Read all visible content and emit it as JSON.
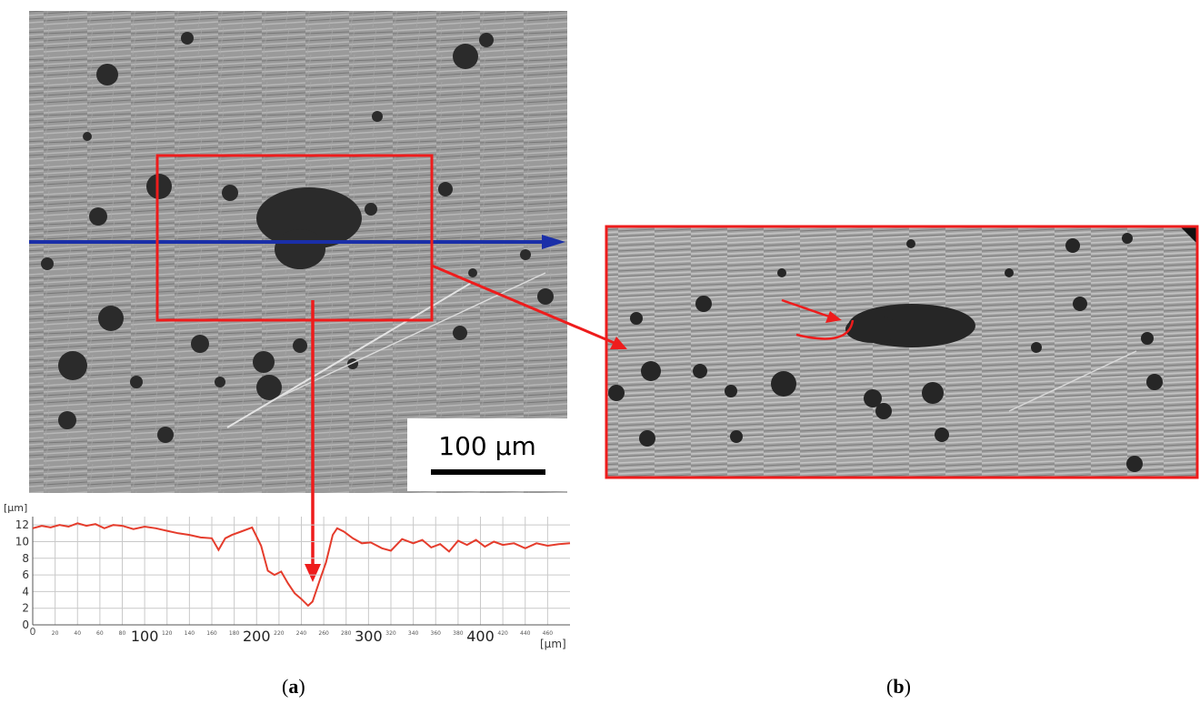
{
  "scale_bar": {
    "label": "100 µm"
  },
  "profile_chart": {
    "y_unit_label": "[µm]",
    "x_unit_label": "[µm]"
  },
  "captions": {
    "a": "a",
    "b": "b"
  },
  "colors": {
    "profile_line": "#e53c2c",
    "scan_line": "#1a2fa8",
    "annotation": "#ee1c1c",
    "grid": "#c9c9c9"
  },
  "chart_data": {
    "type": "line",
    "title": "",
    "xlabel": "[µm]",
    "ylabel": "[µm]",
    "xlim": [
      0,
      480
    ],
    "ylim": [
      0,
      13
    ],
    "grid": true,
    "x_major_ticks": [
      100,
      200,
      300,
      400
    ],
    "x_minor_ticks": [
      0,
      20,
      40,
      60,
      80,
      120,
      140,
      160,
      180,
      220,
      240,
      260,
      280,
      320,
      340,
      360,
      380,
      420,
      440,
      460
    ],
    "y_ticks": [
      0,
      2,
      4,
      6,
      8,
      10,
      12
    ],
    "series": [
      {
        "x": [
          0,
          8,
          16,
          24,
          32,
          40,
          48,
          56,
          64,
          72,
          80,
          90,
          100,
          110,
          120,
          130,
          140,
          150,
          160,
          166,
          172,
          178,
          186,
          196,
          204,
          210,
          216,
          222,
          228,
          234,
          240,
          246,
          250,
          256,
          262,
          268,
          272,
          278,
          286,
          294,
          302,
          312,
          320,
          330,
          340,
          348,
          356,
          364,
          372,
          380,
          388,
          396,
          404,
          412,
          420,
          430,
          440,
          450,
          460,
          470,
          480
        ],
        "y": [
          11.6,
          11.9,
          11.7,
          12.0,
          11.8,
          12.2,
          11.9,
          12.1,
          11.6,
          12.0,
          11.9,
          11.5,
          11.8,
          11.6,
          11.3,
          11.0,
          10.8,
          10.5,
          10.4,
          9.0,
          10.4,
          10.8,
          11.2,
          11.7,
          9.5,
          6.5,
          6.0,
          6.4,
          5.0,
          3.8,
          3.1,
          2.3,
          2.8,
          5.2,
          7.5,
          10.8,
          11.6,
          11.2,
          10.4,
          9.8,
          9.9,
          9.2,
          8.9,
          10.3,
          9.8,
          10.2,
          9.3,
          9.7,
          8.8,
          10.1,
          9.6,
          10.2,
          9.4,
          10.0,
          9.6,
          9.8,
          9.2,
          9.8,
          9.5,
          9.7,
          9.8
        ]
      }
    ]
  }
}
